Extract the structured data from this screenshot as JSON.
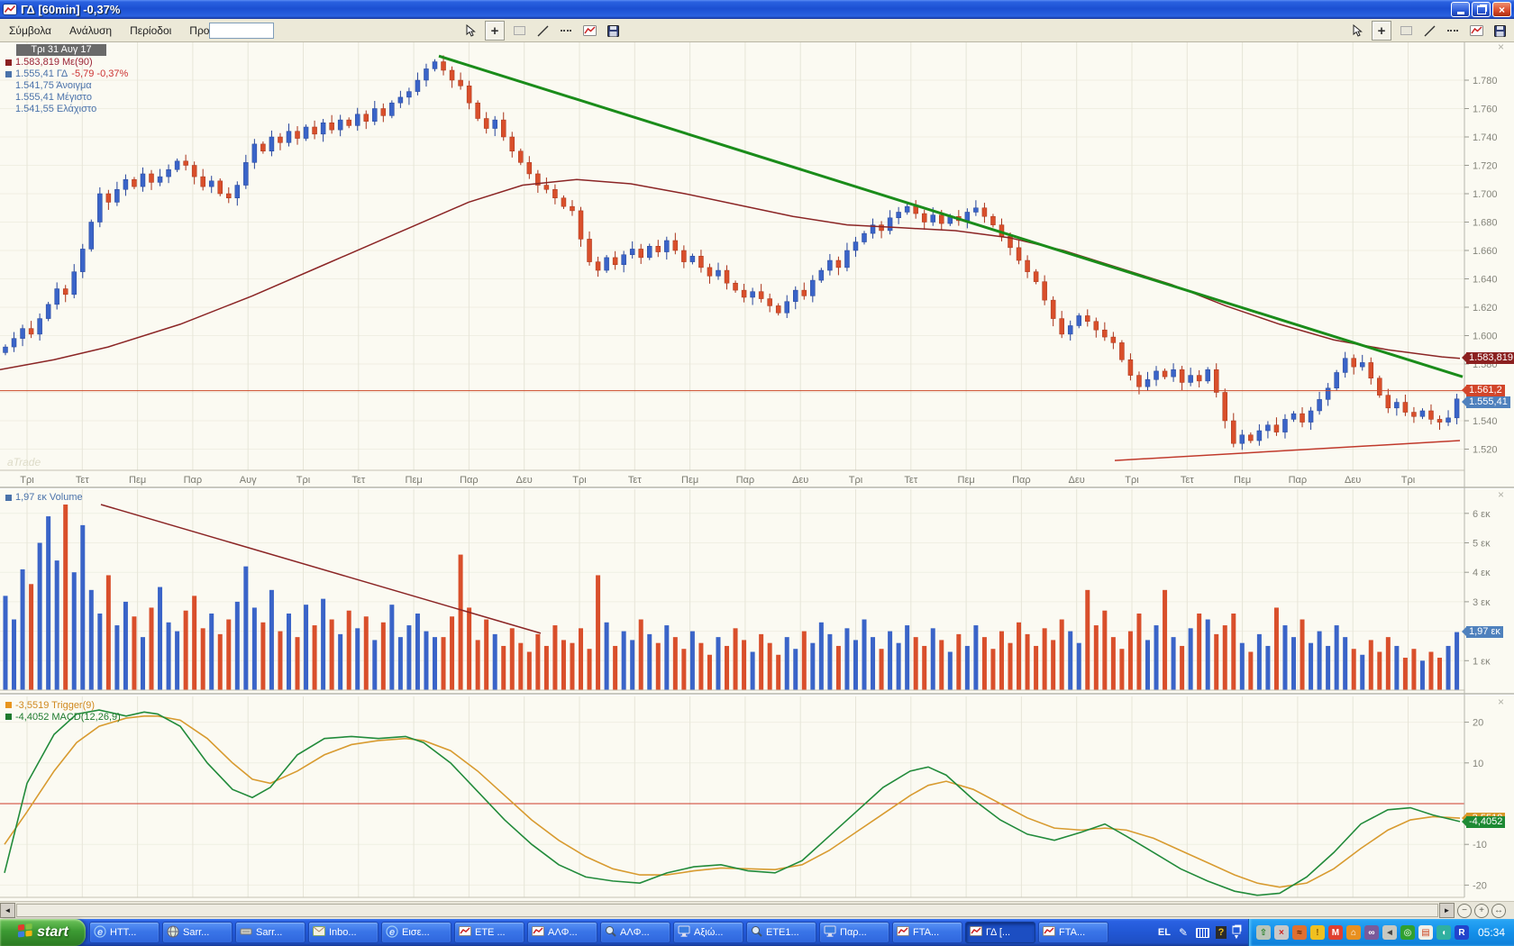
{
  "window": {
    "title": "ΓΔ [60min] -0,37%"
  },
  "menu": {
    "items": [
      "Σύμβολα",
      "Ανάλυση",
      "Περίοδοι",
      "Προβολή"
    ]
  },
  "toolbar": {
    "tools": [
      "pointer",
      "crosshair",
      "rectangle",
      "trendline",
      "dashed-line",
      "new-chart",
      "save"
    ]
  },
  "chart": {
    "watermark": "aTrade",
    "info": {
      "date": "Τρι 31 Αυγ 17",
      "ma": "1.583,819 Με(90)",
      "last": "1.555,41 ΓΔ",
      "change": "-5,79 -0,37%",
      "open": "1.541,75 Άνοιγμα",
      "high": "1.555,41 Μέγιστο",
      "low": "1.541,55 Ελάχιστο"
    },
    "tags": {
      "ma": "1.583,819",
      "hline": "1.561,2",
      "last": "1.555,41"
    }
  },
  "volume": {
    "legend": "1,97 εκ Volume",
    "tag": "1,97 εκ"
  },
  "macd": {
    "trigger_legend": "-3,5519 Trigger(9)",
    "macd_legend": "-4,4052 MACD(12,26,9)",
    "trigger_tag": "-3,5519",
    "macd_tag": "-4,4052"
  },
  "colors": {
    "up": "#3a64c8",
    "up_stroke": "#26449a",
    "down": "#d94f2b",
    "down_stroke": "#a83218",
    "ma_line": "#8b2525",
    "trend_green": "#1a8c1a",
    "hline": "#cc4a2a",
    "support": "#c0392b",
    "macd_line": "#228b3b",
    "trigger_line": "#d89b30",
    "zero_line": "#cc3b2b",
    "grid_v": "#e7e5d8",
    "grid_h": "#f0efe3",
    "axis_text": "#85857b"
  },
  "chart_data": [
    {
      "type": "candlestick",
      "symbol": "ΓΔ",
      "timeframe": "60min",
      "last_close": 1555.41,
      "change": -5.79,
      "change_pct": -0.37,
      "ma90_last": 1583.819,
      "hline_level": 1561.2,
      "ylim": [
        1510,
        1800
      ],
      "y_ticks": [
        1780,
        1760,
        1740,
        1720,
        1700,
        1680,
        1660,
        1640,
        1620,
        1600,
        1580,
        1560,
        1540,
        1520
      ],
      "x_labels": [
        "Τρι",
        "Τετ",
        "Πεμ",
        "Παρ",
        "Αυγ",
        "Τρι",
        "Τετ",
        "Πεμ",
        "Παρ",
        "Δευ",
        "Τρι",
        "Τετ",
        "Πεμ",
        "Παρ",
        "Δευ",
        "Τρι",
        "Τετ",
        "Πεμ",
        "Παρ",
        "Δευ",
        "Τρι",
        "Τετ",
        "Πεμ",
        "Παρ",
        "Δευ",
        "Τρι"
      ],
      "first_open": 1588,
      "closes": [
        1592,
        1598,
        1605,
        1601,
        1612,
        1622,
        1633,
        1629,
        1645,
        1661,
        1680,
        1700,
        1694,
        1703,
        1710,
        1705,
        1714,
        1708,
        1712,
        1717,
        1723,
        1720,
        1712,
        1705,
        1709,
        1700,
        1697,
        1706,
        1722,
        1735,
        1730,
        1740,
        1736,
        1744,
        1739,
        1747,
        1742,
        1750,
        1745,
        1752,
        1748,
        1756,
        1751,
        1760,
        1755,
        1764,
        1768,
        1772,
        1780,
        1788,
        1793,
        1787,
        1780,
        1776,
        1764,
        1753,
        1746,
        1752,
        1740,
        1730,
        1722,
        1714,
        1706,
        1703,
        1697,
        1691,
        1688,
        1668,
        1652,
        1646,
        1655,
        1650,
        1657,
        1661,
        1655,
        1663,
        1659,
        1667,
        1660,
        1652,
        1656,
        1648,
        1642,
        1646,
        1637,
        1632,
        1627,
        1631,
        1626,
        1621,
        1616,
        1624,
        1632,
        1628,
        1639,
        1646,
        1653,
        1648,
        1660,
        1666,
        1672,
        1678,
        1674,
        1683,
        1687,
        1691,
        1686,
        1680,
        1685,
        1679,
        1684,
        1681,
        1687,
        1690,
        1684,
        1678,
        1670,
        1662,
        1653,
        1645,
        1638,
        1625,
        1612,
        1601,
        1607,
        1614,
        1610,
        1604,
        1599,
        1595,
        1583,
        1572,
        1564,
        1569,
        1575,
        1571,
        1576,
        1567,
        1572,
        1568,
        1576,
        1560,
        1540,
        1524,
        1530,
        1526,
        1533,
        1537,
        1532,
        1541,
        1545,
        1539,
        1547,
        1555,
        1563,
        1574,
        1584,
        1578,
        1581,
        1570,
        1558,
        1549,
        1553,
        1546,
        1543,
        1547,
        1541,
        1539,
        1542,
        1555.4
      ],
      "ma90_points": [
        [
          0,
          1576
        ],
        [
          60,
          1583
        ],
        [
          120,
          1592
        ],
        [
          200,
          1608
        ],
        [
          280,
          1628
        ],
        [
          360,
          1650
        ],
        [
          440,
          1672
        ],
        [
          520,
          1694
        ],
        [
          580,
          1706
        ],
        [
          640,
          1710
        ],
        [
          700,
          1707
        ],
        [
          760,
          1700
        ],
        [
          820,
          1692
        ],
        [
          880,
          1684
        ],
        [
          940,
          1678
        ],
        [
          1000,
          1676
        ],
        [
          1060,
          1674
        ],
        [
          1120,
          1669
        ],
        [
          1180,
          1660
        ],
        [
          1240,
          1648
        ],
        [
          1300,
          1636
        ],
        [
          1360,
          1621
        ],
        [
          1420,
          1608
        ],
        [
          1480,
          1597
        ],
        [
          1540,
          1590
        ],
        [
          1600,
          1585
        ],
        [
          1620,
          1584
        ]
      ],
      "trendline_green": [
        [
          487,
          1797
        ],
        [
          1623,
          1571
        ]
      ],
      "support_line": [
        [
          1237,
          1512
        ],
        [
          1620,
          1526
        ]
      ]
    },
    {
      "type": "bar",
      "name": "Volume",
      "unit": "εκ",
      "last": 1.97,
      "y_ticks": [
        6,
        5,
        4,
        3,
        2,
        1
      ],
      "y_tick_labels": [
        "6 εκ",
        "5 εκ",
        "4 εκ",
        "3 εκ",
        "2 εκ",
        "1 εκ"
      ],
      "values": [
        3.2,
        2.4,
        4.1,
        3.6,
        5.0,
        5.9,
        4.4,
        6.3,
        4.0,
        5.6,
        3.4,
        2.6,
        3.9,
        2.2,
        3.0,
        2.5,
        1.8,
        2.8,
        3.5,
        2.3,
        2.0,
        2.7,
        3.2,
        2.1,
        2.6,
        1.9,
        2.4,
        3.0,
        4.2,
        2.8,
        2.3,
        3.4,
        2.0,
        2.6,
        1.8,
        2.9,
        2.2,
        3.1,
        2.4,
        1.9,
        2.7,
        2.1,
        2.5,
        1.7,
        2.3,
        2.9,
        1.8,
        2.2,
        2.6,
        2.0,
        1.8,
        1.8,
        2.5,
        4.6,
        2.8,
        1.7,
        2.4,
        1.9,
        1.5,
        2.1,
        1.6,
        1.3,
        1.9,
        1.5,
        2.2,
        1.7,
        1.6,
        2.1,
        1.4,
        3.9,
        2.3,
        1.5,
        2.0,
        1.7,
        2.4,
        1.9,
        1.6,
        2.2,
        1.8,
        1.4,
        2.0,
        1.6,
        1.2,
        1.8,
        1.5,
        2.1,
        1.7,
        1.3,
        1.9,
        1.6,
        1.2,
        1.8,
        1.4,
        2.0,
        1.6,
        2.3,
        1.9,
        1.5,
        2.1,
        1.7,
        2.4,
        1.8,
        1.4,
        2.0,
        1.6,
        2.2,
        1.8,
        1.5,
        2.1,
        1.7,
        1.3,
        1.9,
        1.5,
        2.2,
        1.8,
        1.4,
        2.0,
        1.6,
        2.3,
        1.9,
        1.5,
        2.1,
        1.7,
        2.4,
        2.0,
        1.6,
        3.4,
        2.2,
        2.7,
        1.8,
        1.4,
        2.0,
        2.6,
        1.7,
        2.2,
        3.4,
        1.8,
        1.5,
        2.1,
        2.6,
        2.4,
        1.9,
        2.2,
        2.6,
        1.6,
        1.3,
        1.9,
        1.5,
        2.8,
        2.2,
        1.8,
        2.4,
        1.6,
        2.0,
        1.5,
        2.2,
        1.8,
        1.4,
        1.2,
        1.7,
        1.3,
        1.8,
        1.5,
        1.1,
        1.4,
        1.0,
        1.3,
        1.1,
        1.5,
        1.97
      ],
      "trendline": [
        [
          112,
          6.3
        ],
        [
          600,
          1.93
        ]
      ]
    },
    {
      "type": "line",
      "name": "MACD(12,26,9)",
      "y_ticks": [
        20,
        10,
        -10,
        -20
      ],
      "series": [
        {
          "name": "MACD",
          "last": -4.4052,
          "points": [
            [
              5,
              -17
            ],
            [
              30,
              5
            ],
            [
              60,
              17
            ],
            [
              85,
              22
            ],
            [
              110,
              23
            ],
            [
              140,
              21.5
            ],
            [
              160,
              22.5
            ],
            [
              175,
              22
            ],
            [
              200,
              19
            ],
            [
              230,
              10
            ],
            [
              258,
              3.5
            ],
            [
              280,
              1.5
            ],
            [
              300,
              4
            ],
            [
              330,
              12
            ],
            [
              360,
              16
            ],
            [
              390,
              16.5
            ],
            [
              420,
              16
            ],
            [
              450,
              16.5
            ],
            [
              470,
              15
            ],
            [
              500,
              10
            ],
            [
              530,
              3
            ],
            [
              560,
              -4
            ],
            [
              590,
              -10
            ],
            [
              620,
              -15
            ],
            [
              650,
              -18
            ],
            [
              680,
              -19
            ],
            [
              710,
              -19.5
            ],
            [
              740,
              -17
            ],
            [
              770,
              -15.5
            ],
            [
              800,
              -15
            ],
            [
              830,
              -16.5
            ],
            [
              860,
              -17
            ],
            [
              890,
              -14
            ],
            [
              920,
              -8
            ],
            [
              950,
              -2
            ],
            [
              980,
              4
            ],
            [
              1010,
              8
            ],
            [
              1030,
              9
            ],
            [
              1050,
              7
            ],
            [
              1080,
              1
            ],
            [
              1110,
              -4
            ],
            [
              1140,
              -7.5
            ],
            [
              1170,
              -9
            ],
            [
              1200,
              -7
            ],
            [
              1226,
              -5
            ],
            [
              1250,
              -8
            ],
            [
              1280,
              -12
            ],
            [
              1310,
              -16
            ],
            [
              1340,
              -19
            ],
            [
              1370,
              -21.5
            ],
            [
              1395,
              -22.5
            ],
            [
              1420,
              -22
            ],
            [
              1450,
              -18
            ],
            [
              1480,
              -12
            ],
            [
              1510,
              -5
            ],
            [
              1540,
              -1.5
            ],
            [
              1565,
              -1
            ],
            [
              1590,
              -2.8
            ],
            [
              1620,
              -4.4
            ]
          ]
        },
        {
          "name": "Trigger(9)",
          "last": -3.5519,
          "points": [
            [
              5,
              -10
            ],
            [
              30,
              -2
            ],
            [
              60,
              8
            ],
            [
              85,
              15
            ],
            [
              110,
              19
            ],
            [
              140,
              21
            ],
            [
              160,
              21.5
            ],
            [
              175,
              21.5
            ],
            [
              200,
              20.5
            ],
            [
              230,
              16
            ],
            [
              258,
              10
            ],
            [
              280,
              6
            ],
            [
              300,
              5
            ],
            [
              330,
              8
            ],
            [
              360,
              12
            ],
            [
              390,
              14.5
            ],
            [
              420,
              15.5
            ],
            [
              450,
              16
            ],
            [
              470,
              15.5
            ],
            [
              500,
              13
            ],
            [
              530,
              8
            ],
            [
              560,
              2
            ],
            [
              590,
              -4
            ],
            [
              620,
              -9
            ],
            [
              650,
              -13
            ],
            [
              680,
              -16
            ],
            [
              710,
              -17.5
            ],
            [
              740,
              -17.5
            ],
            [
              770,
              -16.5
            ],
            [
              800,
              -15.8
            ],
            [
              830,
              -16
            ],
            [
              860,
              -16.2
            ],
            [
              890,
              -15
            ],
            [
              920,
              -11.5
            ],
            [
              950,
              -7
            ],
            [
              980,
              -2.5
            ],
            [
              1010,
              2
            ],
            [
              1030,
              4.5
            ],
            [
              1050,
              5.5
            ],
            [
              1080,
              3.5
            ],
            [
              1110,
              0
            ],
            [
              1140,
              -3.5
            ],
            [
              1170,
              -6
            ],
            [
              1200,
              -6.5
            ],
            [
              1226,
              -6
            ],
            [
              1250,
              -6.5
            ],
            [
              1280,
              -8.5
            ],
            [
              1310,
              -11.5
            ],
            [
              1340,
              -14.5
            ],
            [
              1370,
              -17.5
            ],
            [
              1395,
              -19.5
            ],
            [
              1420,
              -20.5
            ],
            [
              1450,
              -19.5
            ],
            [
              1480,
              -16
            ],
            [
              1510,
              -11
            ],
            [
              1540,
              -6.5
            ],
            [
              1565,
              -4
            ],
            [
              1590,
              -3.2
            ],
            [
              1620,
              -3.55
            ]
          ]
        }
      ]
    }
  ],
  "taskbar": {
    "start_label": "start",
    "clock": "05:34",
    "language": "EL",
    "tasks": [
      {
        "label": "HTT...",
        "icon": "ie"
      },
      {
        "label": "Sarr...",
        "icon": "globe"
      },
      {
        "label": "Sarr...",
        "icon": "app"
      },
      {
        "label": "Inbo...",
        "icon": "mail"
      },
      {
        "label": "Εισε...",
        "icon": "ie"
      },
      {
        "label": "ΕΤΕ ...",
        "icon": "chart"
      },
      {
        "label": "ΑΛΦ...",
        "icon": "chart"
      },
      {
        "label": "ΑΛΦ...",
        "icon": "mag"
      },
      {
        "label": "Αξιώ...",
        "icon": "monitor"
      },
      {
        "label": "ΕΤΕ1...",
        "icon": "mag"
      },
      {
        "label": "Παρ...",
        "icon": "monitor"
      },
      {
        "label": "FTA...",
        "icon": "chart"
      },
      {
        "label": "ΓΔ [...",
        "icon": "chart",
        "active": true
      },
      {
        "label": "FTA...",
        "icon": "chart"
      }
    ],
    "tray": [
      {
        "name": "eject-device-icon",
        "bg": "#b8c4b8",
        "fg": "#1a7a1a",
        "glyph": "⇧"
      },
      {
        "name": "network-error-icon",
        "bg": "#c8c8c8",
        "fg": "#cc2222",
        "glyph": "×"
      },
      {
        "name": "downloader-icon",
        "bg": "#e07030",
        "fg": "#5a2000",
        "glyph": "≈"
      },
      {
        "name": "security-alert-icon",
        "bg": "#f0c020",
        "fg": "#8a5a00",
        "glyph": "!"
      },
      {
        "name": "mail-notifier-icon",
        "bg": "#e04030",
        "fg": "#ffffff",
        "glyph": "M"
      },
      {
        "name": "alert-flag-icon",
        "bg": "#e89020",
        "fg": "#ffffff",
        "glyph": "⌂"
      },
      {
        "name": "media-player-icon",
        "bg": "#7a5a9a",
        "fg": "#ffffff",
        "glyph": "∞"
      },
      {
        "name": "volume-icon",
        "bg": "#c8c8c0",
        "fg": "#444444",
        "glyph": "◄"
      },
      {
        "name": "messenger-icon",
        "bg": "#30a030",
        "fg": "#ffffff",
        "glyph": "◎"
      },
      {
        "name": "scheduler-icon",
        "bg": "#f0f0e8",
        "fg": "#cc4422",
        "glyph": "▤"
      },
      {
        "name": "updater-icon",
        "bg": "#30b0a0",
        "fg": "#ffffff",
        "glyph": "◖"
      },
      {
        "name": "bluetooth-icon",
        "bg": "#2244cc",
        "fg": "#ffffff",
        "glyph": "R"
      }
    ]
  }
}
